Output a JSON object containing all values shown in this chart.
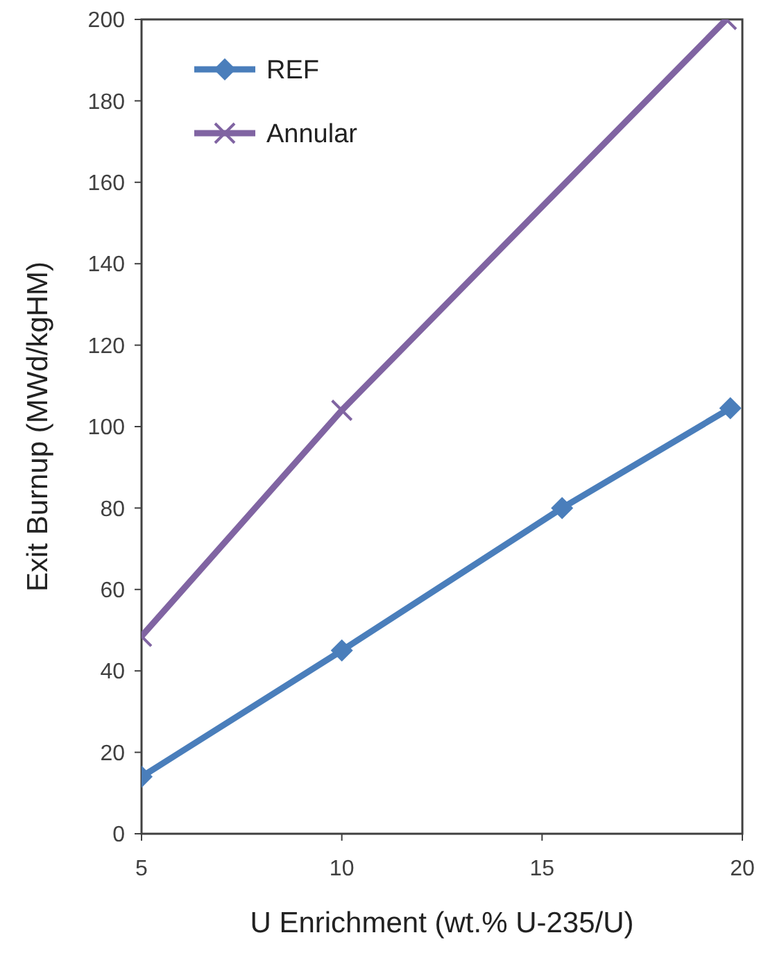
{
  "chart_data": {
    "type": "line",
    "xlabel": "U Enrichment (wt.% U-235/U)",
    "ylabel": "Exit Burnup (MWd/kgHM)",
    "xlim": [
      5,
      20
    ],
    "xticks": [
      5,
      10,
      15,
      20
    ],
    "ylim": [
      0,
      200
    ],
    "yticks": [
      0,
      20,
      40,
      60,
      80,
      100,
      120,
      140,
      160,
      180,
      200
    ],
    "grid": false,
    "legend": "top left",
    "series": [
      {
        "name": "REF",
        "color": "#4a7ebb",
        "marker": "diamond",
        "x": [
          5,
          10,
          15.5,
          19.7
        ],
        "values": [
          14,
          45,
          80,
          104.5
        ]
      },
      {
        "name": "Annular",
        "color": "#8064a2",
        "marker": "cross",
        "x": [
          5,
          10,
          19.6
        ],
        "values": [
          48.5,
          104,
          200
        ]
      }
    ]
  }
}
